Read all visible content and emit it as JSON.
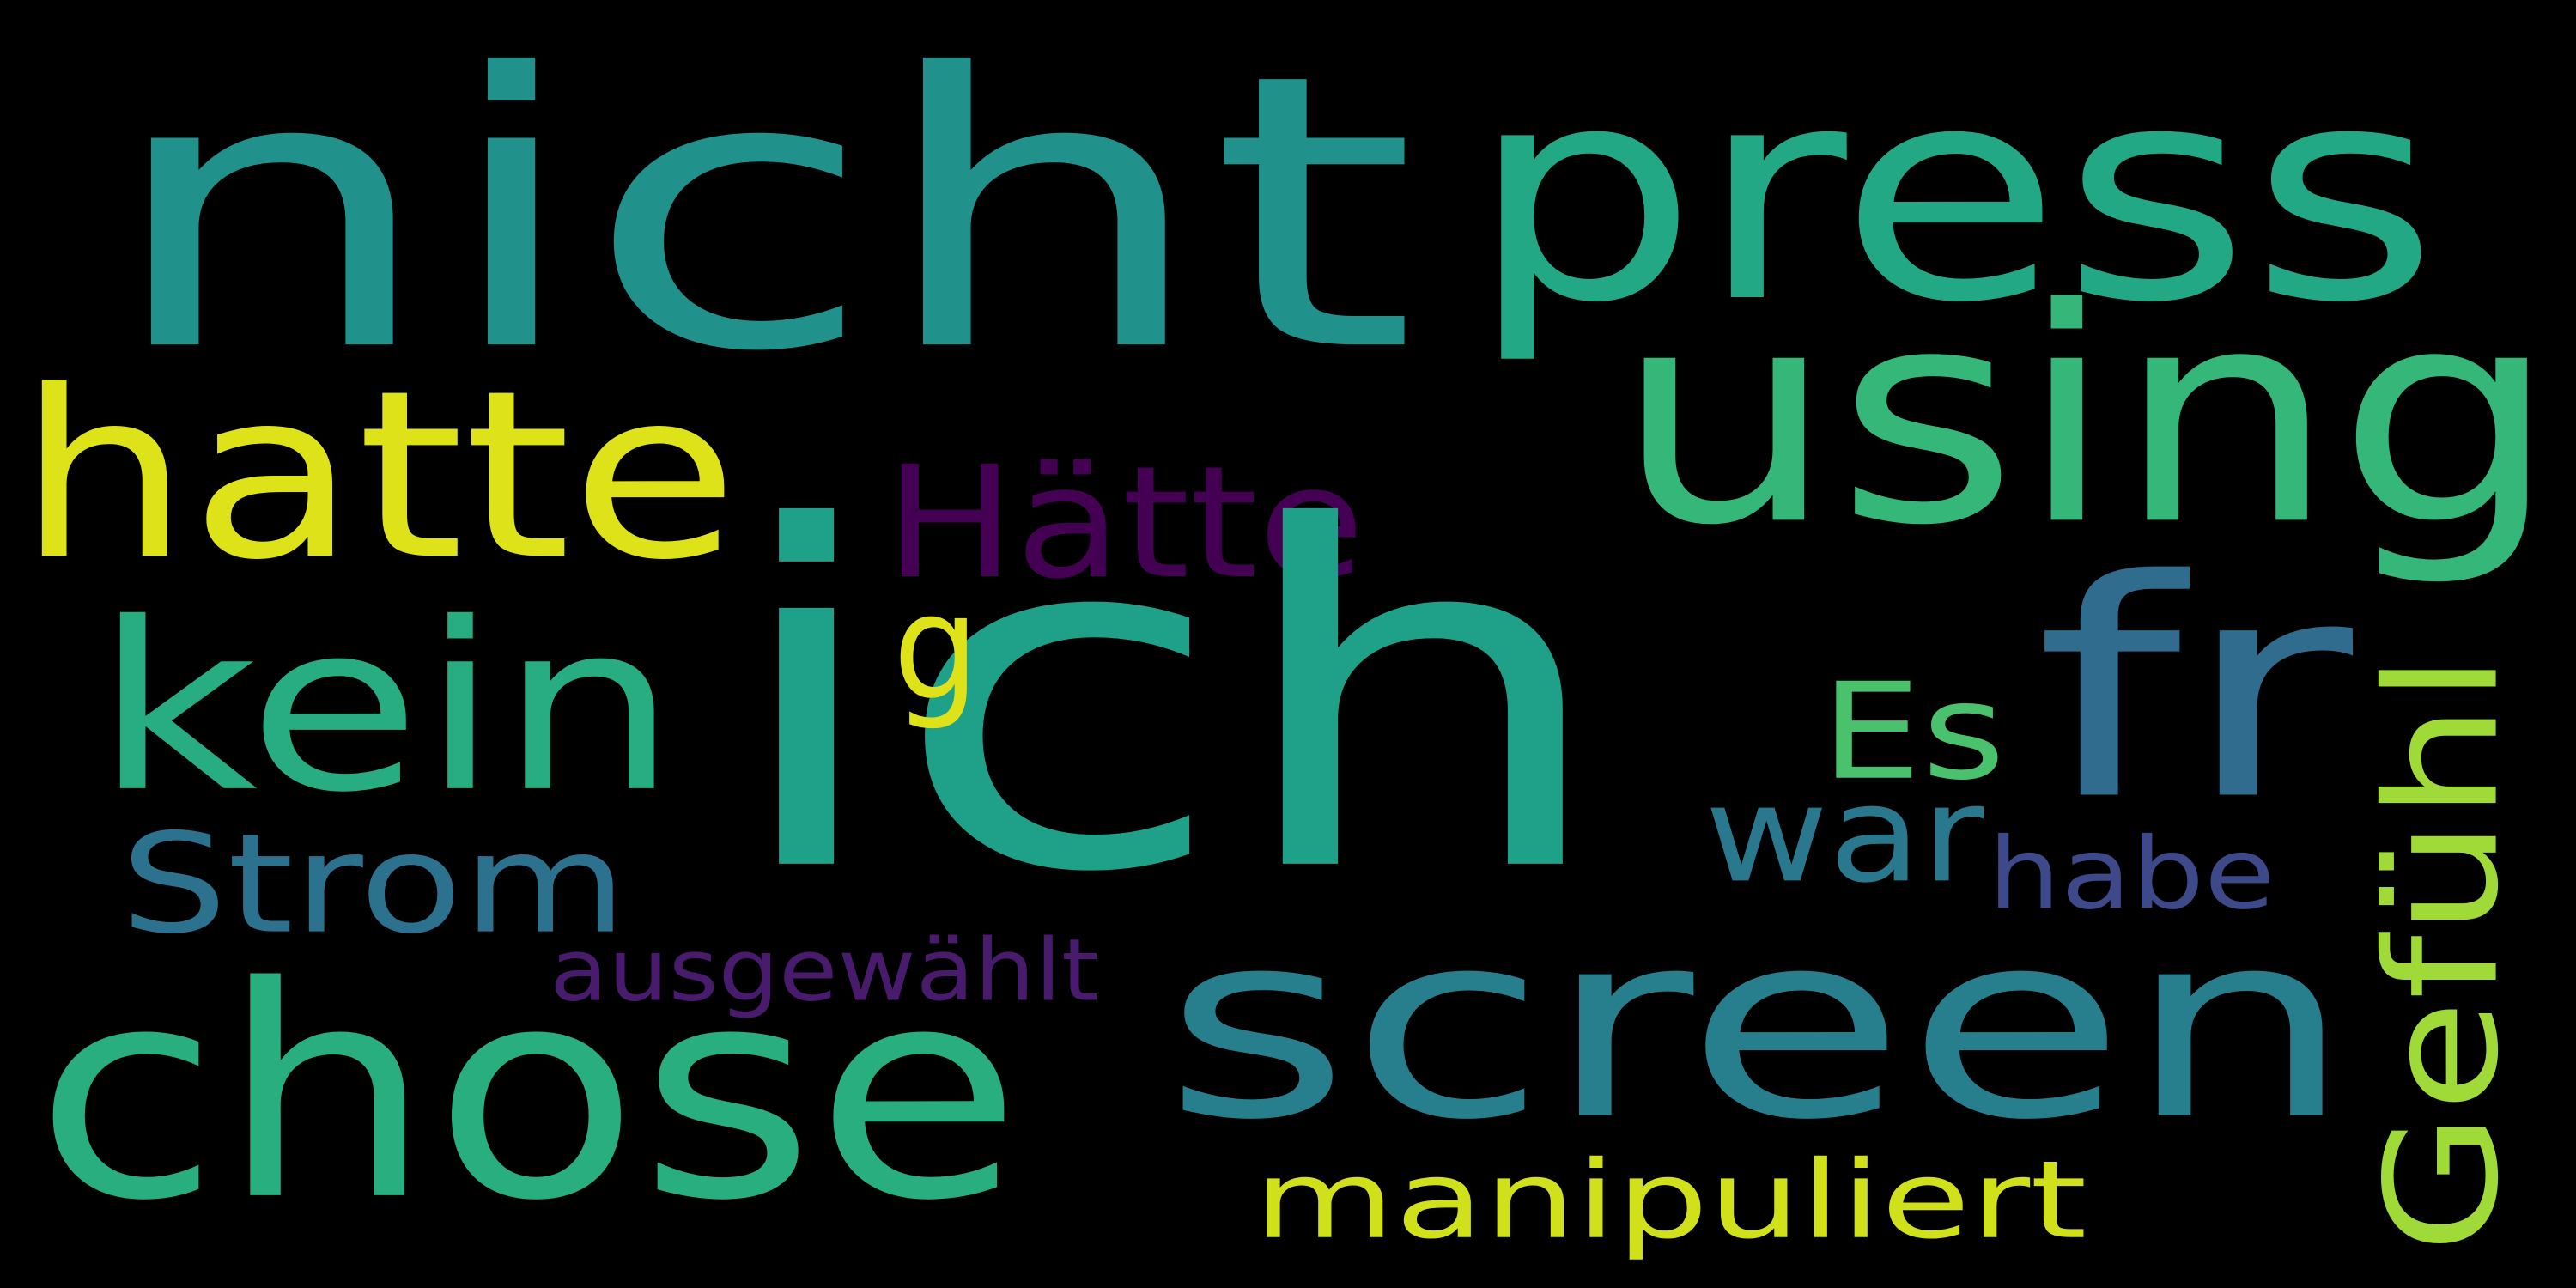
{
  "words": [
    {
      "text": "nicht",
      "color": "#21918c"
    },
    {
      "text": "press",
      "color": "#22a884"
    },
    {
      "text": "using",
      "color": "#35b779"
    },
    {
      "text": "hatte",
      "color": "#dde318"
    },
    {
      "text": "Hätte",
      "color": "#440154"
    },
    {
      "text": "ich",
      "color": "#1fa088"
    },
    {
      "text": "fr",
      "color": "#2f6c8e"
    },
    {
      "text": "kein",
      "color": "#27ad81"
    },
    {
      "text": "g",
      "color": "#dde318"
    },
    {
      "text": "Es",
      "color": "#4ac16d"
    },
    {
      "text": "Gefühl",
      "color": "#a0da39",
      "vertical": true
    },
    {
      "text": "war",
      "color": "#29788e"
    },
    {
      "text": "Strom",
      "color": "#2c728e"
    },
    {
      "text": "habe",
      "color": "#3e4989"
    },
    {
      "text": "ausgewählt",
      "color": "#481b6d"
    },
    {
      "text": "chose",
      "color": "#29af7f"
    },
    {
      "text": "screen",
      "color": "#277f8e"
    },
    {
      "text": "manipuliert",
      "color": "#d0e11c"
    }
  ]
}
